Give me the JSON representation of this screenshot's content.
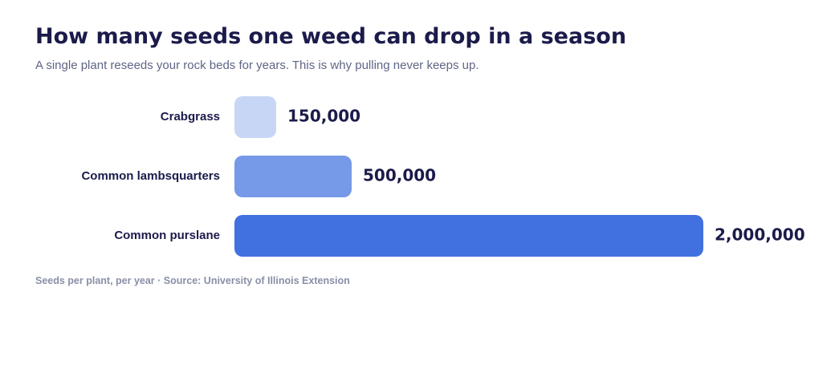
{
  "title": "How many seeds one weed can drop in a season",
  "subtitle": "A single plant reseeds your rock beds for years. This is why pulling never keeps up.",
  "footnote": "Seeds per plant, per year · Source: University of Illinois Extension",
  "colors": {
    "bars": [
      "#c8d6f6",
      "#7699e8",
      "#4170e0"
    ],
    "text": "#1b1b4b",
    "muted": "#5f6585",
    "footnote": "#8a8fa8"
  },
  "chart_data": {
    "type": "bar",
    "orientation": "horizontal",
    "categories": [
      "Crabgrass",
      "Common lambsquarters",
      "Common purslane"
    ],
    "values": [
      150000,
      500000,
      2000000
    ],
    "value_labels": [
      "150,000",
      "500,000",
      "2,000,000"
    ],
    "title": "How many seeds one weed can drop in a season",
    "xlabel": "",
    "ylabel": "",
    "xlim": [
      0,
      2000000
    ],
    "grid": false
  }
}
